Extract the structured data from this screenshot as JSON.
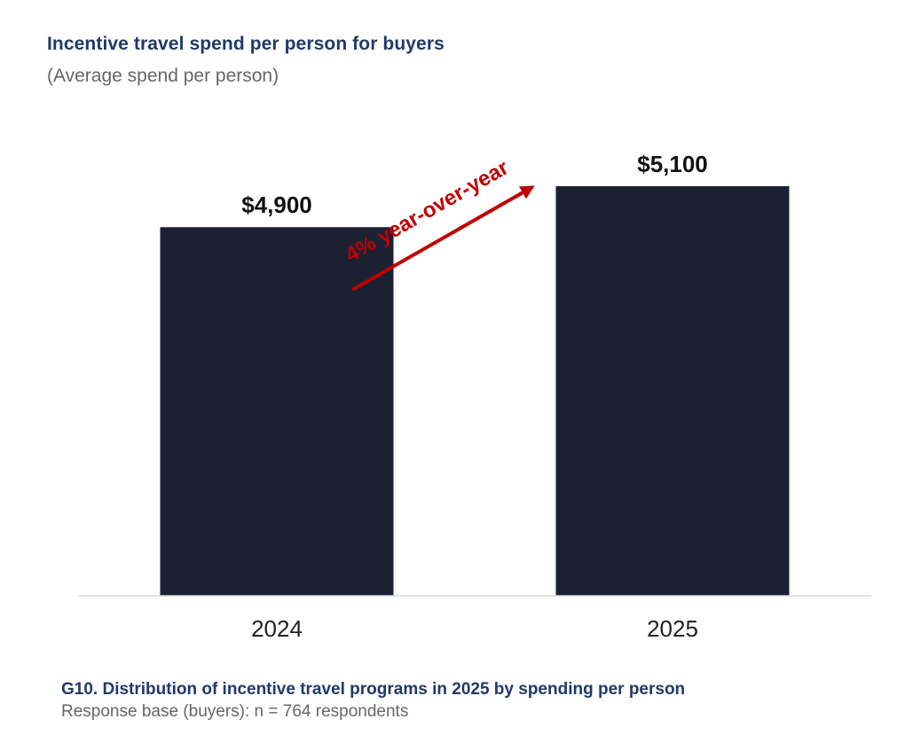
{
  "header": {
    "title": "Incentive travel spend per person for buyers",
    "subtitle": "(Average spend per person)"
  },
  "annotation": {
    "text": "4% year-over-year",
    "color": "#c00000"
  },
  "footnote": {
    "title": "G10. Distribution of incentive travel programs in 2025 by spending per person",
    "base": "Response base (buyers): n = 764 respondents"
  },
  "colors": {
    "bar": "#1b2133",
    "title": "#1f3a68",
    "subtitle": "#666666",
    "axis": "#d9d9d9",
    "arrow": "#c00000"
  },
  "chart_data": {
    "type": "bar",
    "title": "Incentive travel spend per person for buyers",
    "subtitle": "(Average spend per person)",
    "categories": [
      "2024",
      "2025"
    ],
    "values": [
      4900,
      5100
    ],
    "data_labels": [
      "$4,900",
      "$5,100"
    ],
    "xlabel": "",
    "ylabel": "",
    "ylim": [
      3100,
      5100
    ],
    "grid": false,
    "legend": "none"
  }
}
